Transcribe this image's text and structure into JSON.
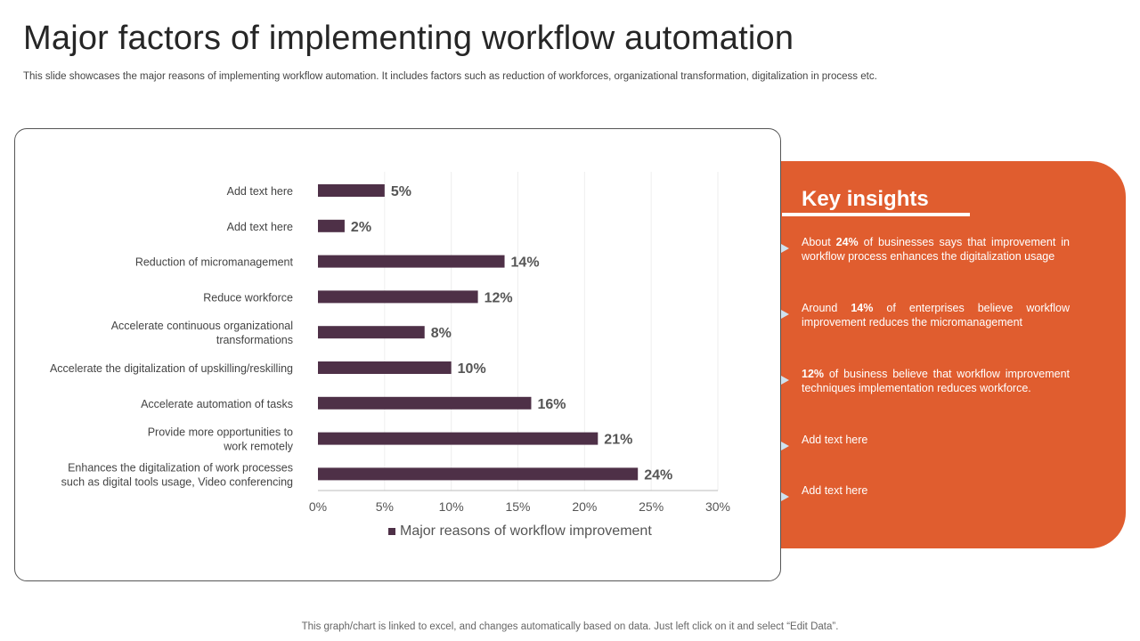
{
  "header": {
    "title": "Major factors of implementing workflow automation",
    "subtitle": "This slide showcases the major reasons of implementing workflow automation. It includes factors such as reduction of workforces, organizational transformation, digitalization in process etc."
  },
  "chart_data": {
    "type": "bar",
    "orientation": "horizontal",
    "categories": [
      "Add text here",
      "Add text here",
      "Reduction of micromanagement",
      "Reduce workforce",
      "Accelerate continuous organizational transformations",
      "Accelerate the digitalization of upskilling/reskilling",
      "Accelerate automation of tasks",
      "Provide more opportunities to work remotely",
      "Enhances the digitalization of work processes such as digital tools usage, Video conferencing"
    ],
    "category_lines": [
      [
        "Add text here"
      ],
      [
        "Add text here"
      ],
      [
        "Reduction of micromanagement"
      ],
      [
        "Reduce workforce"
      ],
      [
        "Accelerate continuous organizational",
        "transformations"
      ],
      [
        "Accelerate the digitalization of upskilling/reskilling"
      ],
      [
        "Accelerate automation of tasks"
      ],
      [
        "Provide more opportunities to",
        "work remotely"
      ],
      [
        "Enhances the digitalization of work processes",
        "such as digital tools usage, Video conferencing"
      ]
    ],
    "series": [
      {
        "name": "Major reasons of workflow improvement",
        "values": [
          5,
          2,
          14,
          12,
          8,
          10,
          16,
          21,
          24
        ],
        "color": "#4e3047"
      }
    ],
    "data_labels": [
      "5%",
      "2%",
      "14%",
      "12%",
      "8%",
      "10%",
      "16%",
      "21%",
      "24%"
    ],
    "xlim": [
      0,
      30
    ],
    "x_ticks": [
      0,
      5,
      10,
      15,
      20,
      25,
      30
    ],
    "x_tick_labels": [
      "0%",
      "5%",
      "10%",
      "15%",
      "20%",
      "25%",
      "30%"
    ],
    "grid": true,
    "legend_position": "bottom"
  },
  "insights": {
    "title": "Key insights",
    "items": [
      {
        "pre": "About ",
        "bold": "24%",
        "post": " of businesses says that improvement in workflow process enhances the digitalization usage"
      },
      {
        "pre": "Around ",
        "bold": "14%",
        "post": " of enterprises believe workflow improvement reduces the micromanagement"
      },
      {
        "pre": "",
        "bold": "12%",
        "post": " of business believe that workflow improvement techniques implementation reduces workforce."
      },
      {
        "pre": "Add text here",
        "bold": "",
        "post": ""
      },
      {
        "pre": "Add text here",
        "bold": "",
        "post": ""
      }
    ],
    "arrow_color": "#cfe3f0",
    "panel_color": "#e05d2f"
  },
  "footer": {
    "note": "This graph/chart is linked to excel, and changes automatically based on data. Just left click on it and select “Edit Data”."
  }
}
